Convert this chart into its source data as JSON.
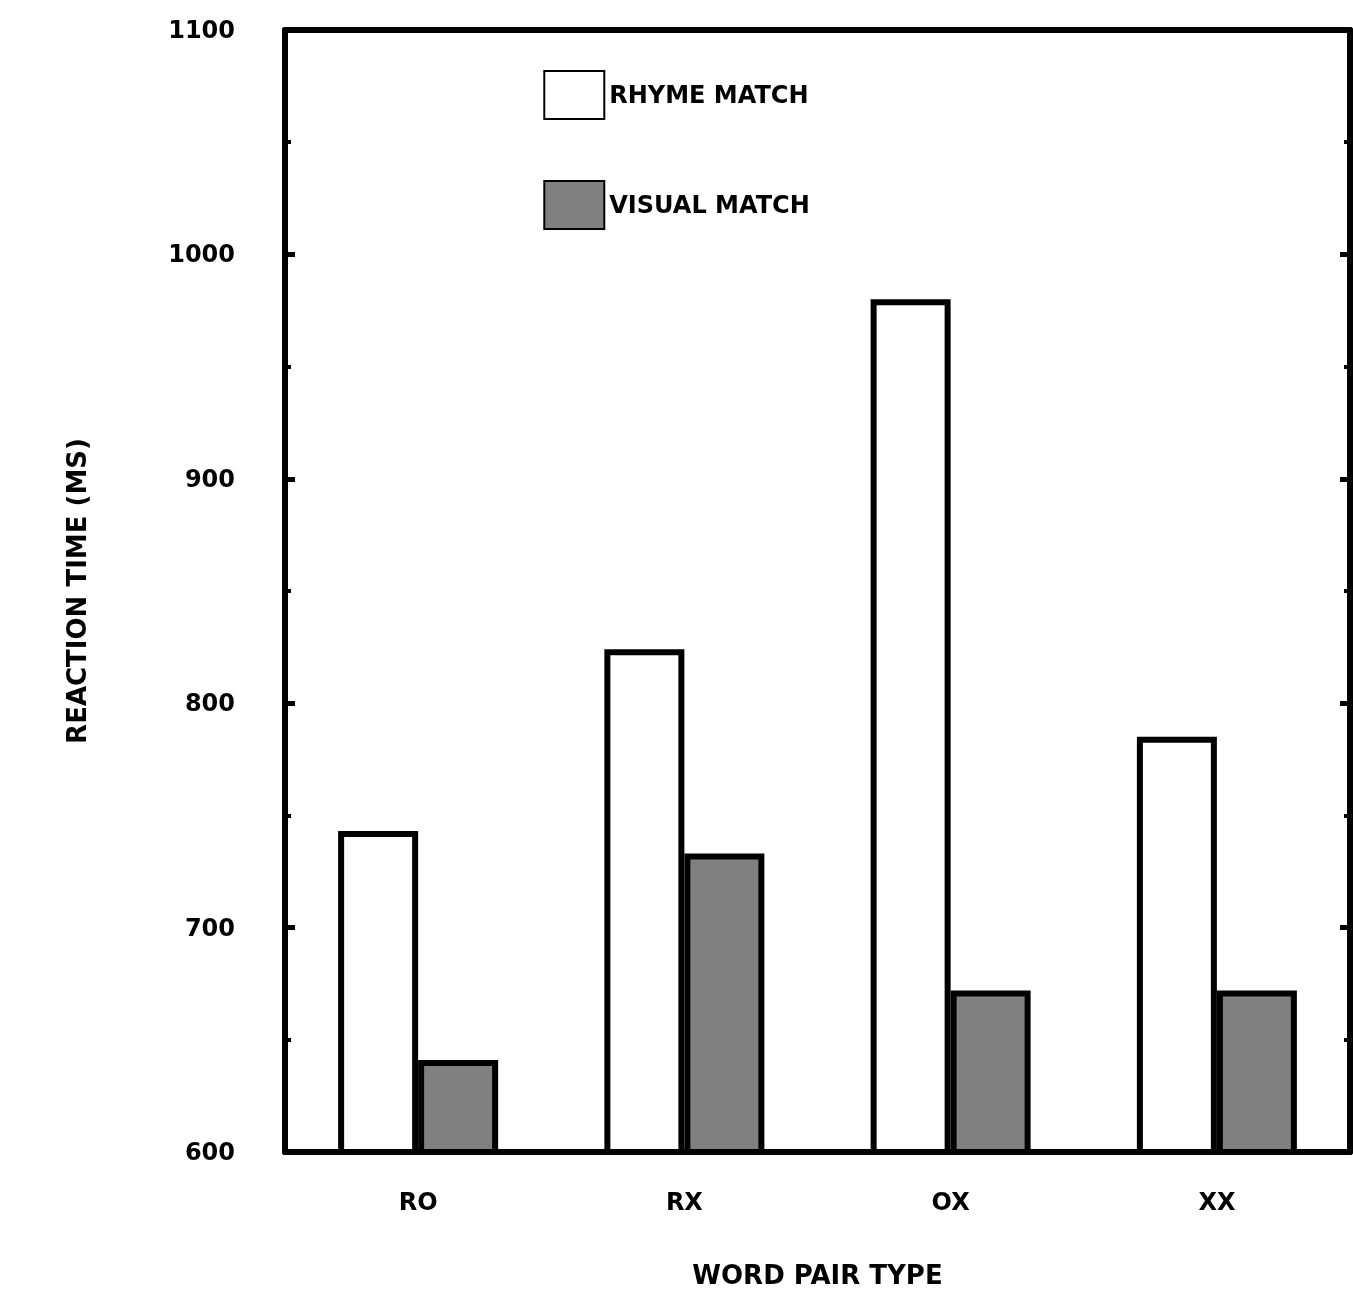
{
  "chart_data": {
    "type": "bar",
    "xlabel": "WORD PAIR TYPE",
    "ylabel": "REACTION TIME (MS)",
    "categories": [
      "RO",
      "RX",
      "OX",
      "XX"
    ],
    "series": [
      {
        "name": "RHYME MATCH",
        "color": "#ffffff",
        "values": [
          743,
          824,
          980,
          785
        ]
      },
      {
        "name": "VISUAL MATCH",
        "color": "#808080",
        "values": [
          641,
          733,
          672,
          672
        ]
      }
    ],
    "ylim": [
      600,
      1100
    ],
    "yticks": [
      600,
      700,
      800,
      900,
      1000,
      1100
    ],
    "grid": false,
    "legend": "top"
  }
}
